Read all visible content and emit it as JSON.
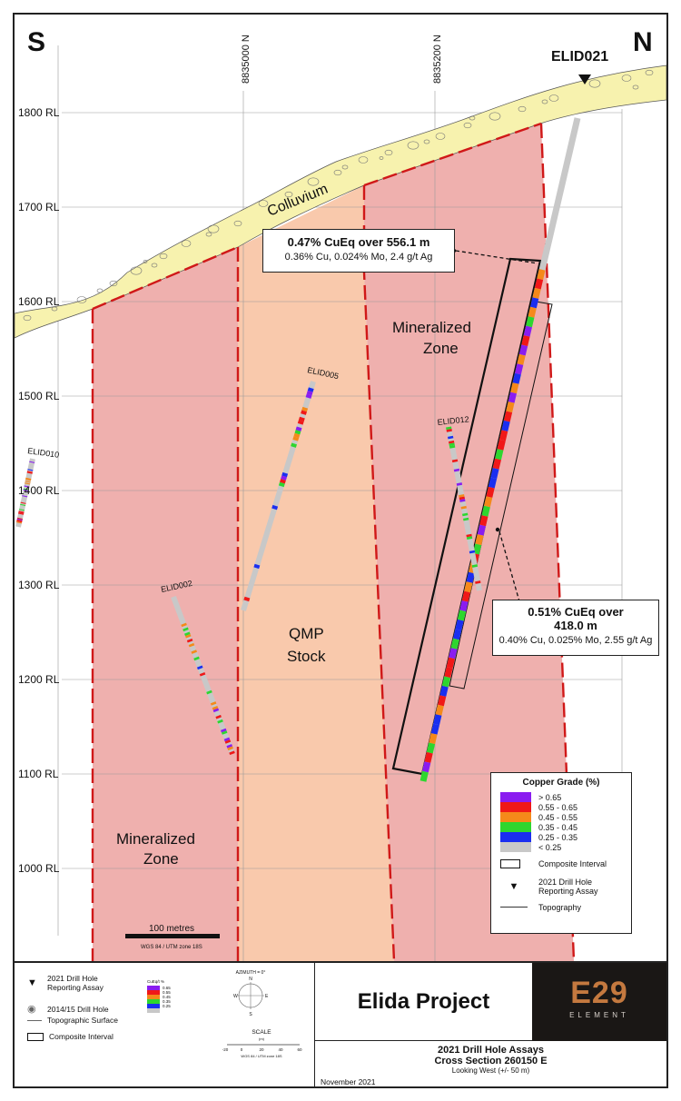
{
  "compass": {
    "south": "S",
    "north": "N"
  },
  "northings": [
    "8835000 N",
    "8835200 N"
  ],
  "rl_labels": [
    "1800 RL",
    "1700 RL",
    "1600 RL",
    "1500 RL",
    "1400 RL",
    "1300 RL",
    "1200 RL",
    "1100 RL",
    "1000 RL"
  ],
  "units": {
    "colluvium": "Colluvium",
    "qmp": [
      "QMP",
      "Stock"
    ],
    "mineralized_zone": [
      "Mineralized",
      "Zone"
    ]
  },
  "drill_holes": {
    "elid021": "ELID021",
    "elid005": "ELID005",
    "elid012": "ELID012",
    "elid010": "ELID010",
    "elid002": "ELID002"
  },
  "callout_upper": {
    "headline": "0.47% CuEq  over 556.1 m",
    "detail": "0.36% Cu, 0.024% Mo, 2.4 g/t Ag"
  },
  "callout_lower": {
    "headline_1": "0.51% CuEq  over",
    "headline_2": "418.0 m",
    "detail": "0.40% Cu, 0.025% Mo, 2.55 g/t Ag"
  },
  "scale_bar": {
    "label": "100 metres",
    "datum": "WGS 84 / UTM zone 18S"
  },
  "legend": {
    "title": "Copper Grade (%)",
    "grades": [
      {
        "label": "> 0.65",
        "color": "#8a1cf0"
      },
      {
        "label": "0.55 - 0.65",
        "color": "#f01818"
      },
      {
        "label": "0.45 - 0.55",
        "color": "#f5891a"
      },
      {
        "label": "0.35 - 0.45",
        "color": "#2ed62e"
      },
      {
        "label": "0.25 - 0.35",
        "color": "#1a2ef0"
      },
      {
        "label": "< 0.25",
        "color": "#c8c8c8"
      }
    ],
    "composite": "Composite Interval",
    "drill_2021_1": "2021 Drill Hole",
    "drill_2021_2": "Reporting Assay",
    "topography": "Topography"
  },
  "bottom_legend": {
    "drill_2021_1": "2021 Drill Hole",
    "drill_2021_2": "Reporting Assay",
    "drill_2014": "2014/15 Drill Hole",
    "topo": "Topographic Surface",
    "composite": "Composite Interval",
    "mini_grade_title": "CuEq/t %",
    "mini_grades": [
      "0.65",
      "0.55",
      "0.45",
      "0.35",
      "0.25"
    ],
    "azimuth": "AZIMUTH = 0°",
    "compass_n": "N",
    "compass_e": "E",
    "compass_s": "S",
    "compass_w": "W",
    "scale_title": "SCALE",
    "scale_unit": "(m)",
    "scale_ticks": [
      "-20",
      "0",
      "20",
      "40",
      "60"
    ],
    "scale_datum": "WGS 84 / UTM zone 18S"
  },
  "title": "Elida Project",
  "logo": {
    "mark": "E29",
    "word": "ELEMENT"
  },
  "subtitle": {
    "line1": "2021 Drill Hole Assays",
    "line2": "Cross Section 260150 E",
    "line3": "Looking West (+/- 50 m)"
  },
  "date": "November 2021",
  "colors": {
    "mineralized": "#efb0ae",
    "stock": "#f9c9ac",
    "colluvium": "#f7f2ae",
    "contact": "#d01818"
  }
}
